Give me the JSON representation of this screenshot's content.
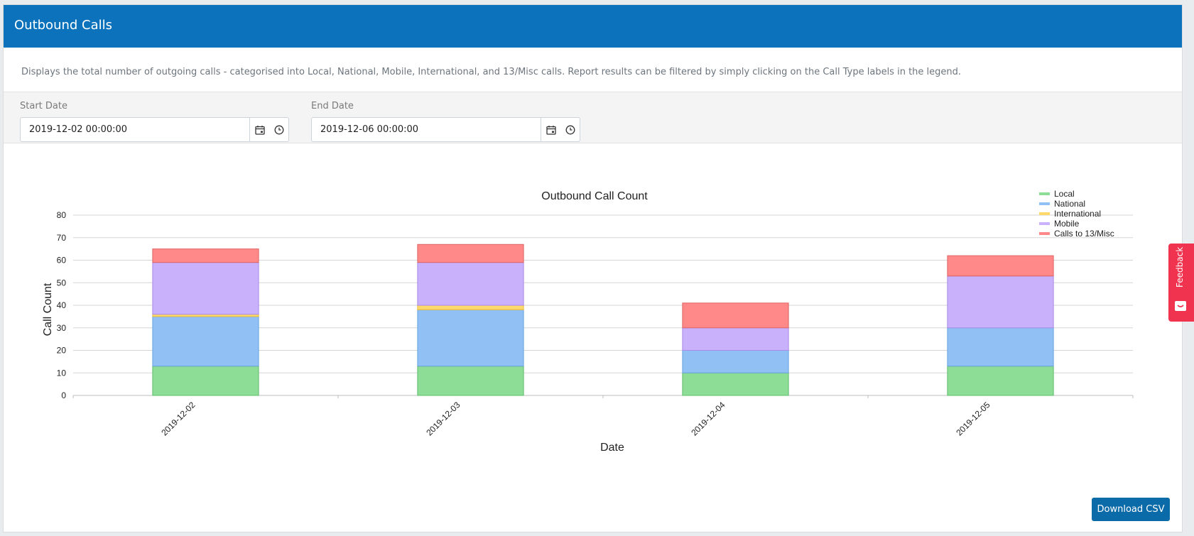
{
  "header": {
    "title": "Outbound Calls"
  },
  "description": "Displays the total number of outgoing calls - categorised into Local, National, Mobile, International, and 13/Misc calls. Report results can be filtered by simply clicking on the Call Type labels in the legend.",
  "filters": {
    "start_label": "Start Date",
    "start_value": "2019-12-02 00:00:00",
    "end_label": "End Date",
    "end_value": "2019-12-06 00:00:00"
  },
  "icons": {
    "calendar": "calendar-icon",
    "clock": "clock-icon",
    "feedback": "feedback-icon"
  },
  "download_label": "Download CSV",
  "feedback_label": "Feedback",
  "colors": {
    "header": "#0b72bb",
    "button": "#0b6aa8",
    "feedback": "#f0334f"
  },
  "chart_data": {
    "type": "bar",
    "stacked": true,
    "title": "Outbound Call Count",
    "xlabel": "Date",
    "ylabel": "Call Count",
    "ylim": [
      0,
      80
    ],
    "yticks": [
      0,
      10,
      20,
      30,
      40,
      50,
      60,
      70,
      80
    ],
    "grid": true,
    "legend_position": "top-right",
    "categories": [
      "2019-12-02",
      "2019-12-03",
      "2019-12-04",
      "2019-12-05"
    ],
    "series": [
      {
        "name": "Local",
        "values": [
          13,
          13,
          10,
          13
        ],
        "color": "#8ddd96",
        "border": "#5fbf6b"
      },
      {
        "name": "National",
        "values": [
          22,
          25,
          10,
          17
        ],
        "color": "#90c0f4",
        "border": "#6aa3e0"
      },
      {
        "name": "International",
        "values": [
          1,
          2,
          0,
          0
        ],
        "color": "#fcd96a",
        "border": "#e8bd3a"
      },
      {
        "name": "Mobile",
        "values": [
          23,
          19,
          10,
          23
        ],
        "color": "#c9b1fb",
        "border": "#a98ae8"
      },
      {
        "name": "Calls to 13/Misc",
        "values": [
          6,
          8,
          11,
          9
        ],
        "color": "#ff8888",
        "border": "#e06363"
      }
    ]
  }
}
